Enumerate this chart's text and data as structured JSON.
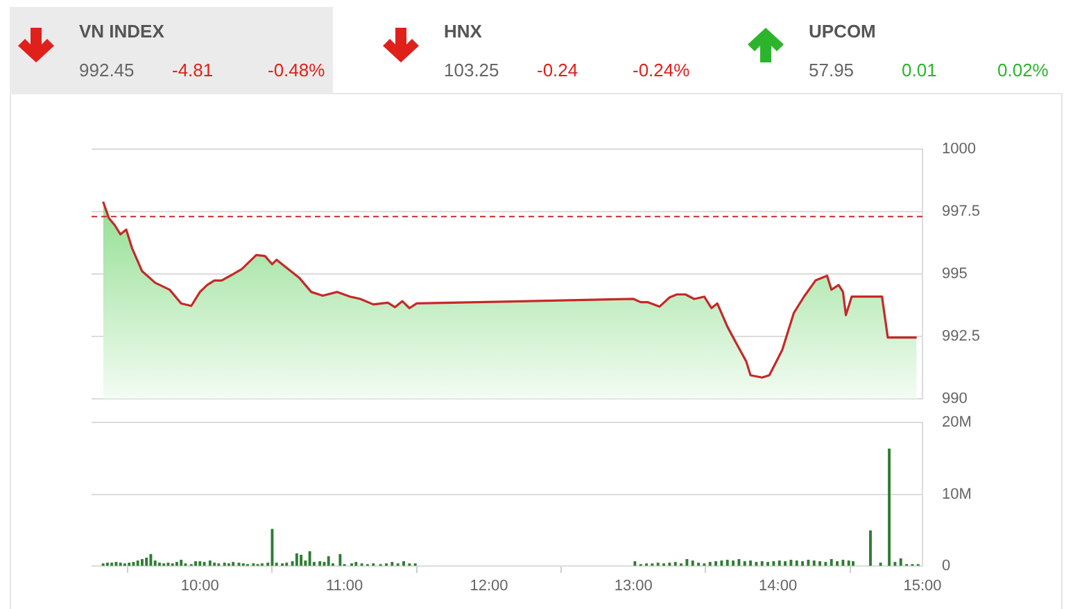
{
  "chart_data": [
    {
      "type": "other",
      "title": "VN INDEX",
      "values": [
        992.45,
        -4.81,
        -0.48
      ],
      "value_labels": [
        "992.45",
        "-4.81",
        "-0.48%"
      ],
      "color": "#e0201b"
    },
    {
      "type": "other",
      "title": "HNX",
      "values": [
        103.25,
        -0.24,
        -0.24
      ],
      "value_labels": [
        "103.25",
        "-0.24",
        "-0.24%"
      ],
      "color": "#e0201b"
    },
    {
      "type": "other",
      "title": "UPCOM",
      "values": [
        57.95,
        0.01,
        0.02
      ],
      "value_labels": [
        "57.95",
        "0.01",
        "0.02%"
      ],
      "color": "#2cb52c"
    },
    {
      "type": "area",
      "color": "#c62828",
      "xlim": [
        9.25,
        15
      ],
      "ylim": [
        990,
        1000
      ],
      "yticks": [
        990,
        992.5,
        995,
        997.5,
        1000
      ],
      "grid": "y",
      "tick_labels": "y",
      "ref_lines": [
        {
          "axis": "y",
          "value": 997.3,
          "color": "#c62828",
          "line_style": "dashed"
        }
      ],
      "x": [
        9.33,
        9.37,
        9.41,
        9.45,
        9.49,
        9.53,
        9.6,
        9.69,
        9.79,
        9.87,
        9.94,
        10.0,
        10.05,
        10.1,
        10.15,
        10.21,
        10.29,
        10.39,
        10.45,
        10.5,
        10.53,
        10.61,
        10.69,
        10.77,
        10.85,
        10.95,
        11.04,
        11.11,
        11.2,
        11.3,
        11.35,
        11.4,
        11.45,
        11.5,
        13.0,
        13.05,
        13.1,
        13.18,
        13.25,
        13.3,
        13.36,
        13.42,
        13.49,
        13.54,
        13.58,
        13.65,
        13.71,
        13.78,
        13.81,
        13.89,
        13.94,
        13.99,
        14.03,
        14.11,
        14.18,
        14.26,
        14.34,
        14.37,
        14.42,
        14.45,
        14.47,
        14.51,
        14.72,
        14.76,
        14.96
      ],
      "values": [
        997.9,
        997.24,
        996.96,
        996.59,
        996.78,
        996.04,
        995.11,
        994.65,
        994.37,
        993.82,
        993.72,
        994.28,
        994.56,
        994.74,
        994.74,
        994.93,
        995.2,
        995.76,
        995.72,
        995.39,
        995.57,
        995.2,
        994.83,
        994.28,
        994.13,
        994.28,
        994.09,
        994.0,
        993.78,
        993.85,
        993.67,
        993.91,
        993.63,
        993.82,
        994.0,
        993.87,
        993.87,
        993.69,
        994.06,
        994.18,
        994.18,
        994.0,
        994.09,
        993.63,
        993.82,
        992.89,
        992.24,
        991.5,
        990.94,
        990.85,
        990.94,
        991.5,
        991.96,
        993.44,
        994.09,
        994.74,
        994.93,
        994.37,
        994.56,
        994.28,
        993.35,
        994.09,
        994.09,
        992.45,
        992.45
      ]
    },
    {
      "type": "bar",
      "color": "#2e7d32",
      "xlim": [
        9.25,
        15
      ],
      "xticks": [
        {
          "value": 10,
          "label": "10:00"
        },
        {
          "value": 11,
          "label": "11:00"
        },
        {
          "value": 12,
          "label": "12:00"
        },
        {
          "value": 13,
          "label": "13:00"
        },
        {
          "value": 14,
          "label": "14:00"
        },
        {
          "value": 15,
          "label": "15:00"
        }
      ],
      "ylim": [
        0,
        20
      ],
      "yticks": [
        0,
        {
          "value": 10,
          "label": "10M"
        },
        {
          "value": 20,
          "label": "20M"
        }
      ],
      "grid": "y",
      "x": [
        9.33,
        9.36,
        9.39,
        9.42,
        9.45,
        9.48,
        9.51,
        9.54,
        9.57,
        9.6,
        9.63,
        9.66,
        9.69,
        9.72,
        9.75,
        9.78,
        9.81,
        9.84,
        9.87,
        9.9,
        9.94,
        9.97,
        10.0,
        10.03,
        10.07,
        10.1,
        10.13,
        10.17,
        10.2,
        10.23,
        10.27,
        10.3,
        10.33,
        10.37,
        10.4,
        10.43,
        10.47,
        10.5,
        10.53,
        10.57,
        10.6,
        10.64,
        10.67,
        10.7,
        10.73,
        10.76,
        10.79,
        10.83,
        10.86,
        10.89,
        10.92,
        10.97,
        11.0,
        11.05,
        11.08,
        11.12,
        11.16,
        11.2,
        11.25,
        11.29,
        11.33,
        11.37,
        11.41,
        11.45,
        11.49,
        13.01,
        13.05,
        13.09,
        13.13,
        13.17,
        13.21,
        13.25,
        13.29,
        13.33,
        13.37,
        13.41,
        13.45,
        13.49,
        13.53,
        13.57,
        13.61,
        13.65,
        13.69,
        13.73,
        13.77,
        13.81,
        13.85,
        13.89,
        13.93,
        13.97,
        14.01,
        14.05,
        14.09,
        14.13,
        14.17,
        14.21,
        14.25,
        14.29,
        14.33,
        14.37,
        14.41,
        14.45,
        14.49,
        14.52,
        14.64,
        14.71,
        14.77,
        14.81,
        14.85,
        14.89,
        14.93,
        14.97
      ],
      "values": [
        0.3,
        0.4,
        0.4,
        0.5,
        0.4,
        0.3,
        0.4,
        0.5,
        0.7,
        0.9,
        1.1,
        1.6,
        0.7,
        0.4,
        0.3,
        0.4,
        0.3,
        0.5,
        0.8,
        0.3,
        0.2,
        0.6,
        0.6,
        0.5,
        0.7,
        0.4,
        0.3,
        0.4,
        0.3,
        0.5,
        0.4,
        0.3,
        0.2,
        0.3,
        0.2,
        0.3,
        0.4,
        5.1,
        0.4,
        0.3,
        0.4,
        0.6,
        1.7,
        1.5,
        0.7,
        2.0,
        0.5,
        0.6,
        0.5,
        1.3,
        0.3,
        1.6,
        0.2,
        0.3,
        0.5,
        0.3,
        0.2,
        0.3,
        0.2,
        0.3,
        0.5,
        0.3,
        0.6,
        0.3,
        0.3,
        0.6,
        0.2,
        0.3,
        0.3,
        0.4,
        0.3,
        0.4,
        0.5,
        0.3,
        0.9,
        0.7,
        0.4,
        0.3,
        0.5,
        0.6,
        0.7,
        0.8,
        0.7,
        0.9,
        0.6,
        0.7,
        0.5,
        0.6,
        0.5,
        0.6,
        0.7,
        0.6,
        0.8,
        0.7,
        0.6,
        0.8,
        0.7,
        0.6,
        0.5,
        0.9,
        0.6,
        0.8,
        0.7,
        0.6,
        4.9,
        0.4,
        16.3,
        0.5,
        1.0,
        0.2,
        0.2,
        0.2
      ]
    }
  ]
}
